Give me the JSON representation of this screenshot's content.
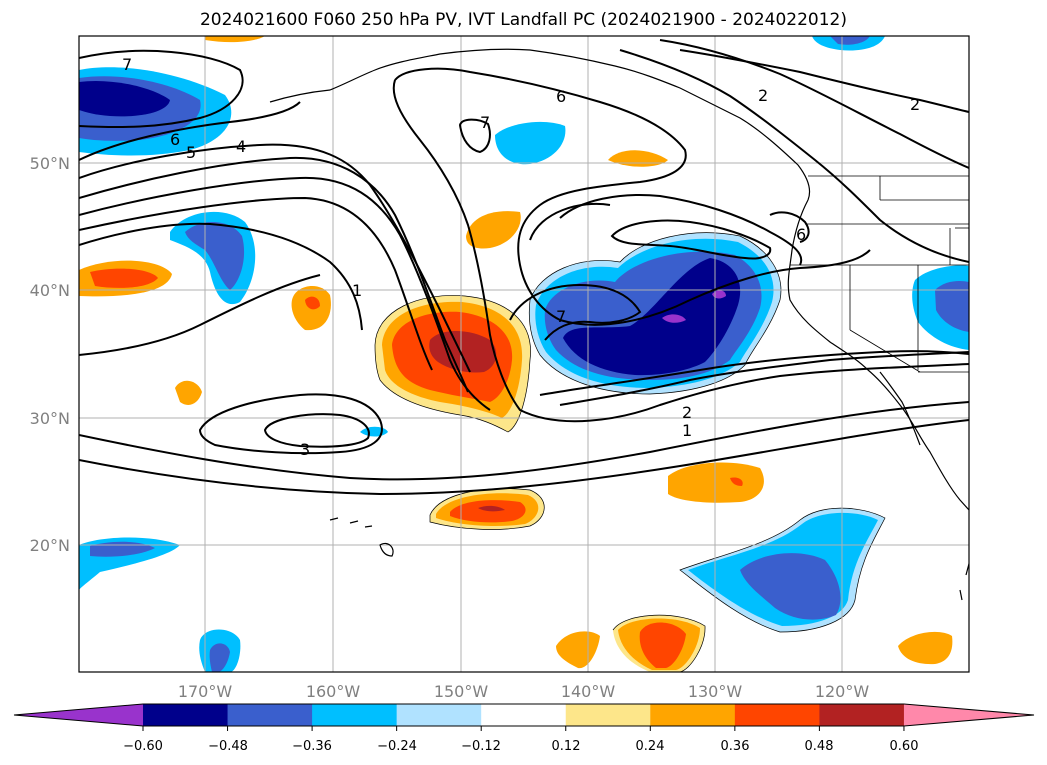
{
  "title": "2024021600 F060 250 hPa PV, IVT Landfall PC (2024021900 - 2024022012)",
  "axes": {
    "lat_labels": [
      "50°N",
      "40°N",
      "30°N",
      "20°N"
    ],
    "lon_labels": [
      "170°W",
      "160°W",
      "150°W",
      "140°W",
      "130°W",
      "120°W"
    ]
  },
  "colorbar": {
    "colors": [
      "#9933cc",
      "#00008b",
      "#3a5fcd",
      "#00bfff",
      "#b0e2ff",
      "#ffffff",
      "#fde68a",
      "#ffa500",
      "#ff4500",
      "#b22222",
      "#ff88aa"
    ],
    "tick_labels": [
      "−0.60",
      "−0.48",
      "−0.36",
      "−0.24",
      "−0.12",
      "0.12",
      "0.24",
      "0.36",
      "0.48",
      "0.60"
    ]
  },
  "contour_labels": [
    "7",
    "6",
    "5",
    "4",
    "7",
    "6",
    "2",
    "2",
    "6",
    "1",
    "7",
    "3",
    "2",
    "1"
  ]
}
